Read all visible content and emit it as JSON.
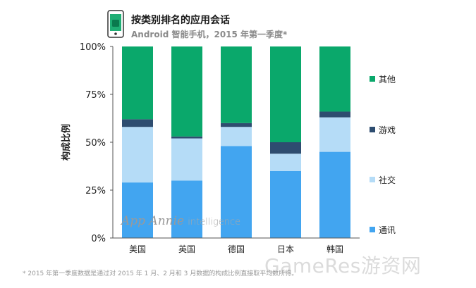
{
  "header": {
    "title": "按类别排名的应用会话",
    "subtitle": "Android 智能手机，2015 年第一季度*",
    "icon": "phone-icon"
  },
  "brand": {
    "name": "App Annie",
    "sub": "intelligence"
  },
  "footnote": "* 2015 年第一季度数据是通过对 2015 年 1 月、2 月和 3 月数据的构成比例直接取平均数所得。",
  "watermark": "GameRes游资网",
  "chart_data": {
    "type": "bar",
    "stacked": true,
    "categories": [
      "美国",
      "英国",
      "德国",
      "日本",
      "韩国"
    ],
    "ylabel": "构成比例",
    "ylim": [
      0,
      100
    ],
    "yticks": [
      "0%",
      "25%",
      "50%",
      "75%",
      "100%"
    ],
    "grid": false,
    "legend_position": "right",
    "series": [
      {
        "name": "通讯",
        "color": "#42a5f0",
        "values": [
          29,
          30,
          48,
          35,
          45
        ]
      },
      {
        "name": "社交",
        "color": "#b5dcf7",
        "values": [
          29,
          22,
          10,
          9,
          18
        ]
      },
      {
        "name": "游戏",
        "color": "#2e4d70",
        "values": [
          4,
          1,
          2,
          6,
          3
        ]
      },
      {
        "name": "其他",
        "color": "#0aa86b",
        "values": [
          38,
          47,
          40,
          50,
          34
        ]
      }
    ]
  }
}
